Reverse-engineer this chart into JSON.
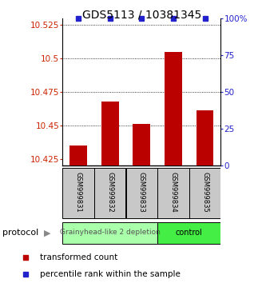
{
  "title": "GDS5113 / 10381345",
  "samples": [
    "GSM999831",
    "GSM999832",
    "GSM999833",
    "GSM999834",
    "GSM999835"
  ],
  "bar_values": [
    10.435,
    10.468,
    10.451,
    10.505,
    10.461
  ],
  "percentile_values": [
    100,
    100,
    100,
    100,
    100
  ],
  "ylim_left": [
    10.42,
    10.53
  ],
  "yticks_left": [
    10.425,
    10.45,
    10.475,
    10.5,
    10.525
  ],
  "ytick_labels_left": [
    "10.425",
    "10.45",
    "10.475",
    "10.5",
    "10.525"
  ],
  "ylim_right": [
    0,
    100
  ],
  "yticks_right": [
    0,
    25,
    50,
    75,
    100
  ],
  "ytick_labels_right": [
    "0",
    "25",
    "50",
    "75",
    "100%"
  ],
  "bar_color": "#bb0000",
  "dot_color": "#2222cc",
  "bar_bottom": 10.42,
  "groups": [
    {
      "label": "Grainyhead-like 2 depletion",
      "n_samples": 3,
      "color": "#aaffaa"
    },
    {
      "label": "control",
      "n_samples": 2,
      "color": "#44ee44"
    }
  ],
  "protocol_label": "protocol",
  "legend_bar_label": "transformed count",
  "legend_dot_label": "percentile rank within the sample",
  "gridlines": [
    10.45,
    10.475,
    10.5
  ],
  "background_color": "#ffffff",
  "left_tick_color": "#cc2200",
  "right_tick_color": "#2222cc",
  "title_fontsize": 10,
  "tick_fontsize": 7.5,
  "legend_fontsize": 7.5,
  "bar_width": 0.55
}
